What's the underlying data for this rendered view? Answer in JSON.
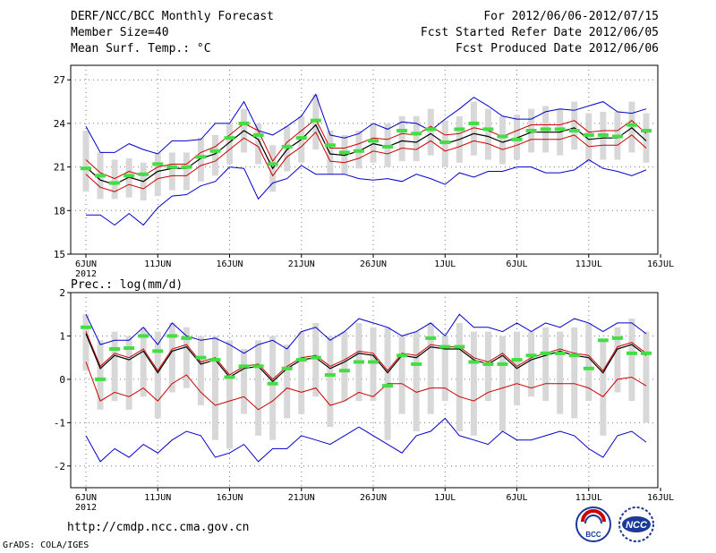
{
  "header": {
    "title": "DERF/NCC/BCC Monthly Forecast",
    "member_size": "Member Size=40",
    "variable": "Mean Surf. Temp.: °C",
    "period": "For 2012/06/06-2012/07/15",
    "start_date": "Fcst Started Refer Date 2012/06/05",
    "produced_date": "Fcst Produced Date 2012/06/06"
  },
  "footer": {
    "url": "http://cmdp.ncc.cma.gov.cn",
    "credit": "GrADS: COLA/IGES",
    "logo_left_text": "BCC",
    "logo_right_text": "NCC"
  },
  "colors": {
    "minmax": "#0000cc",
    "bounds": "#cc0000",
    "mean": "#000000",
    "obs": "#44dd44",
    "bar": "#d8d8d8"
  },
  "chart_data": [
    {
      "type": "line",
      "title": "Mean Surf. Temp.: °C",
      "x_ticks": [
        "6JUN",
        "11JUN",
        "16JUN",
        "21JUN",
        "26JUN",
        "1JUL",
        "6JUL",
        "11JUL",
        "16JUL"
      ],
      "x_year_label": "2012",
      "ylim": [
        15,
        28
      ],
      "y_ticks": [
        15,
        18,
        21,
        24,
        27
      ],
      "days": 40,
      "series": [
        {
          "name": "max",
          "values": [
            23.8,
            22.0,
            22.0,
            22.6,
            22.2,
            21.9,
            22.8,
            22.8,
            22.9,
            24.0,
            24.0,
            25.5,
            23.5,
            23.2,
            23.8,
            24.5,
            26.0,
            23.2,
            23.0,
            23.3,
            24.0,
            23.6,
            24.1,
            24.0,
            23.5,
            24.3,
            25.0,
            25.8,
            25.2,
            24.5,
            24.3,
            24.3,
            24.8,
            25.0,
            24.9,
            25.2,
            25.5,
            24.8,
            24.7,
            25.0
          ]
        },
        {
          "name": "upper",
          "values": [
            21.5,
            20.6,
            20.2,
            20.7,
            20.4,
            21.0,
            21.2,
            21.2,
            22.0,
            22.4,
            23.2,
            24.0,
            23.5,
            21.4,
            22.7,
            23.5,
            24.3,
            22.3,
            22.3,
            22.6,
            23.0,
            22.9,
            23.3,
            23.2,
            23.8,
            23.2,
            23.3,
            23.7,
            23.5,
            23.1,
            23.5,
            23.9,
            23.9,
            23.9,
            24.2,
            23.4,
            23.5,
            23.5,
            24.2,
            23.3
          ]
        },
        {
          "name": "mean",
          "values": [
            21.0,
            20.1,
            19.8,
            20.3,
            20.0,
            20.7,
            20.9,
            20.9,
            21.6,
            21.9,
            22.7,
            23.5,
            22.9,
            20.9,
            22.2,
            22.9,
            23.9,
            21.9,
            21.8,
            22.1,
            22.6,
            22.4,
            22.8,
            22.7,
            23.3,
            22.6,
            22.9,
            23.3,
            23.1,
            22.7,
            23.0,
            23.4,
            23.4,
            23.4,
            23.7,
            22.9,
            23.0,
            23.0,
            23.7,
            22.8
          ]
        },
        {
          "name": "lower",
          "values": [
            20.5,
            19.6,
            19.3,
            19.8,
            19.5,
            20.2,
            20.4,
            20.4,
            21.1,
            21.4,
            22.2,
            23.0,
            22.4,
            20.4,
            21.7,
            22.4,
            23.4,
            21.4,
            21.3,
            21.6,
            22.1,
            21.9,
            22.3,
            22.2,
            22.8,
            22.1,
            22.4,
            22.8,
            22.6,
            22.2,
            22.5,
            22.9,
            22.9,
            22.9,
            23.2,
            22.4,
            22.5,
            22.5,
            23.2,
            22.3
          ]
        },
        {
          "name": "min",
          "values": [
            17.7,
            17.7,
            17.0,
            17.8,
            17.0,
            18.2,
            19.0,
            19.1,
            19.7,
            20.0,
            21.0,
            20.9,
            18.8,
            19.9,
            20.2,
            21.1,
            20.5,
            20.5,
            20.5,
            20.2,
            20.1,
            20.2,
            20.0,
            20.5,
            20.2,
            19.8,
            20.6,
            20.3,
            20.7,
            20.7,
            21.0,
            21.0,
            20.6,
            20.6,
            20.8,
            21.5,
            20.9,
            20.7,
            20.4,
            20.8
          ]
        },
        {
          "name": "observed",
          "values": [
            20.9,
            20.4,
            19.9,
            20.4,
            20.5,
            21.2,
            21.0,
            21.0,
            21.7,
            22.1,
            23.0,
            24.0,
            23.2,
            21.2,
            22.4,
            23.0,
            24.2,
            22.5,
            22.0,
            22.1,
            22.8,
            22.4,
            23.5,
            23.3,
            23.6,
            22.7,
            23.6,
            24.0,
            23.6,
            23.1,
            22.9,
            23.5,
            23.6,
            23.6,
            23.5,
            23.2,
            23.2,
            23.1,
            23.9,
            23.5
          ]
        },
        {
          "name": "spread_high",
          "values": [
            23.5,
            22.0,
            21.5,
            21.6,
            21.3,
            22.0,
            22.0,
            22.0,
            23.0,
            23.2,
            24.0,
            25.0,
            24.0,
            22.5,
            23.8,
            24.5,
            26.0,
            23.5,
            23.2,
            23.5,
            24.0,
            24.0,
            24.5,
            24.5,
            25.0,
            24.2,
            24.5,
            25.5,
            25.0,
            24.5,
            24.6,
            25.0,
            25.2,
            25.0,
            25.5,
            24.7,
            24.8,
            24.8,
            25.5,
            24.7
          ]
        },
        {
          "name": "spread_low",
          "values": [
            19.3,
            18.8,
            18.8,
            18.9,
            18.7,
            19.0,
            19.4,
            19.4,
            20.0,
            20.4,
            21.2,
            22.0,
            21.2,
            19.3,
            20.7,
            21.3,
            22.2,
            20.5,
            20.5,
            20.9,
            21.3,
            21.0,
            21.4,
            21.4,
            21.8,
            21.0,
            21.3,
            21.8,
            21.5,
            21.2,
            21.5,
            22.0,
            22.0,
            21.8,
            22.2,
            21.3,
            21.5,
            21.5,
            22.0,
            21.3
          ]
        }
      ]
    },
    {
      "type": "line",
      "title": "Prec.: log(mm/d)",
      "x_ticks": [
        "6JUN",
        "11JUN",
        "16JUN",
        "21JUN",
        "26JUN",
        "1JUL",
        "6JUL",
        "11JUL",
        "16JUL"
      ],
      "x_year_label": "2012",
      "ylim": [
        -2.5,
        2.0
      ],
      "y_ticks": [
        -2,
        -1,
        0,
        1,
        2
      ],
      "days": 40,
      "series": [
        {
          "name": "max",
          "values": [
            1.5,
            0.8,
            0.9,
            0.9,
            1.2,
            0.8,
            1.3,
            1.0,
            0.9,
            0.95,
            0.8,
            0.6,
            0.8,
            0.9,
            0.7,
            1.1,
            1.2,
            0.9,
            1.1,
            1.4,
            1.3,
            1.2,
            1.0,
            1.1,
            1.3,
            1.0,
            1.5,
            1.2,
            1.2,
            1.1,
            1.3,
            1.1,
            1.3,
            1.2,
            1.4,
            1.3,
            1.1,
            1.3,
            1.3,
            1.05
          ]
        },
        {
          "name": "upper",
          "values": [
            1.1,
            0.3,
            0.6,
            0.5,
            0.7,
            0.2,
            0.7,
            0.8,
            0.4,
            0.5,
            0.1,
            0.3,
            0.35,
            0.0,
            0.3,
            0.5,
            0.55,
            0.3,
            0.45,
            0.65,
            0.6,
            0.2,
            0.6,
            0.55,
            0.8,
            0.75,
            0.75,
            0.5,
            0.4,
            0.6,
            0.3,
            0.5,
            0.6,
            0.7,
            0.6,
            0.55,
            0.2,
            0.75,
            0.85,
            0.6
          ]
        },
        {
          "name": "mean",
          "values": [
            1.05,
            0.25,
            0.55,
            0.45,
            0.65,
            0.15,
            0.65,
            0.75,
            0.35,
            0.45,
            0.05,
            0.25,
            0.3,
            -0.05,
            0.25,
            0.45,
            0.5,
            0.25,
            0.4,
            0.6,
            0.55,
            0.15,
            0.55,
            0.5,
            0.75,
            0.7,
            0.7,
            0.45,
            0.35,
            0.55,
            0.25,
            0.45,
            0.55,
            0.65,
            0.55,
            0.5,
            0.15,
            0.7,
            0.8,
            0.55
          ]
        },
        {
          "name": "lower",
          "values": [
            0.4,
            -0.5,
            -0.3,
            -0.4,
            -0.2,
            -0.5,
            -0.1,
            0.1,
            -0.3,
            -0.6,
            -0.5,
            -0.4,
            -0.7,
            -0.5,
            -0.2,
            -0.3,
            -0.2,
            -0.6,
            -0.5,
            -0.3,
            -0.4,
            -0.1,
            -0.1,
            -0.3,
            -0.2,
            -0.2,
            -0.4,
            -0.5,
            -0.3,
            -0.2,
            -0.1,
            -0.2,
            -0.1,
            -0.1,
            -0.1,
            -0.2,
            -0.4,
            0.0,
            0.05,
            -0.15
          ]
        },
        {
          "name": "min",
          "values": [
            -1.3,
            -1.9,
            -1.6,
            -1.8,
            -1.5,
            -1.7,
            -1.4,
            -1.2,
            -1.3,
            -1.8,
            -1.7,
            -1.5,
            -1.9,
            -1.6,
            -1.6,
            -1.3,
            -1.4,
            -1.5,
            -1.3,
            -1.1,
            -1.3,
            -1.5,
            -1.7,
            -1.3,
            -1.2,
            -0.9,
            -1.3,
            -1.4,
            -1.5,
            -1.2,
            -1.4,
            -1.4,
            -1.3,
            -1.2,
            -1.3,
            -1.6,
            -1.8,
            -1.3,
            -1.2,
            -1.45
          ]
        },
        {
          "name": "observed",
          "values": [
            1.2,
            0.0,
            0.7,
            0.72,
            1.0,
            0.65,
            1.0,
            0.95,
            0.5,
            0.45,
            0.05,
            0.3,
            0.3,
            -0.1,
            0.25,
            0.45,
            0.5,
            0.1,
            0.2,
            0.4,
            0.4,
            -0.15,
            0.55,
            0.35,
            0.95,
            0.75,
            0.75,
            0.4,
            0.35,
            0.35,
            0.45,
            0.55,
            0.6,
            0.6,
            0.55,
            0.25,
            0.9,
            0.95,
            0.6,
            0.6
          ]
        },
        {
          "name": "spread_high",
          "values": [
            1.5,
            0.9,
            1.1,
            1.0,
            1.2,
            1.1,
            1.3,
            1.2,
            1.0,
            1.0,
            0.9,
            0.7,
            0.9,
            1.0,
            0.8,
            1.1,
            1.3,
            1.0,
            1.1,
            1.3,
            1.2,
            1.2,
            1.0,
            1.1,
            1.3,
            1.0,
            1.3,
            1.1,
            1.1,
            1.0,
            1.1,
            1.1,
            1.2,
            1.1,
            1.2,
            1.3,
            0.9,
            1.2,
            1.4,
            1.1
          ]
        },
        {
          "name": "spread_low",
          "values": [
            0.2,
            -0.7,
            -0.5,
            -0.7,
            -0.4,
            -0.9,
            -0.3,
            -0.2,
            -0.6,
            -1.4,
            -1.6,
            -0.8,
            -1.3,
            -1.4,
            -0.9,
            -0.8,
            -0.4,
            -1.1,
            -0.5,
            -0.5,
            -0.5,
            -1.4,
            -0.8,
            -1.2,
            -0.8,
            -0.5,
            -1.2,
            -1.3,
            -0.5,
            -1.2,
            -0.6,
            -0.4,
            -0.5,
            -0.8,
            -0.9,
            -0.5,
            -1.3,
            -0.3,
            -0.5,
            -1.0
          ]
        }
      ]
    }
  ]
}
